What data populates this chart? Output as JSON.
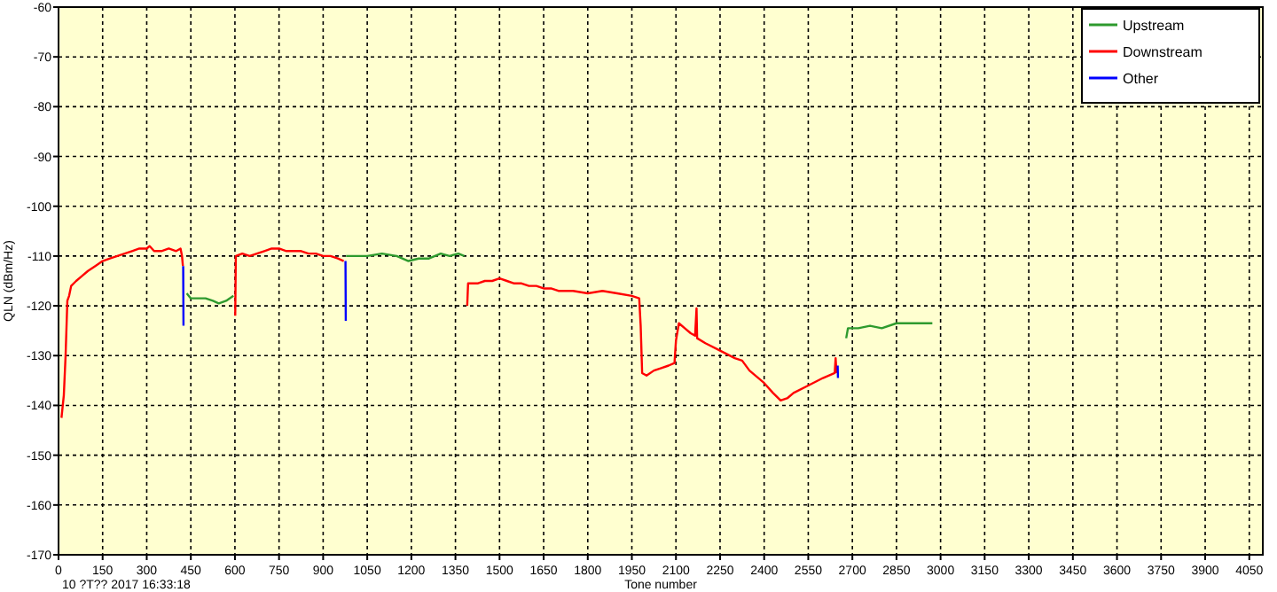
{
  "chart_data": {
    "type": "line",
    "xlabel": "Tone number",
    "ylabel": "QLN (dBm/Hz)",
    "annotations": [
      "10 ?T?? 2017 16:33:18"
    ],
    "xlim": [
      0,
      4096
    ],
    "xticks": [
      0,
      150,
      300,
      450,
      600,
      750,
      900,
      1050,
      1200,
      1350,
      1500,
      1650,
      1800,
      1950,
      2100,
      2250,
      2400,
      2550,
      2700,
      2850,
      3000,
      3150,
      3300,
      3450,
      3600,
      3750,
      3900,
      4050
    ],
    "ylim": [
      -170,
      -60
    ],
    "yticks": [
      -60,
      -70,
      -80,
      -90,
      -100,
      -110,
      -120,
      -130,
      -140,
      -150,
      -160,
      -170
    ],
    "grid": true,
    "legend": "top right",
    "line_style": "solid",
    "marker": "none",
    "series": [
      {
        "name": "Upstream",
        "color": "#2e9a2e",
        "x": [
          436,
          450,
          475,
          500,
          525,
          545,
          570,
          595,
          790,
          978,
          1000,
          1050,
          1100,
          1150,
          1190,
          1225,
          1260,
          1300,
          1330,
          1360,
          1380,
          2000,
          2679,
          2685,
          2720,
          2760,
          2800,
          2850,
          2900,
          2930,
          2972
        ],
        "values": [
          -117.5,
          -118.5,
          -118.5,
          -118.5,
          -119,
          -119.5,
          -119,
          -118,
          null,
          -110,
          -110,
          -110,
          -109.5,
          -110,
          -111,
          -110.5,
          -110.5,
          -109.5,
          -110,
          -109.5,
          -110,
          null,
          -126.5,
          -124.5,
          -124.5,
          -124,
          -124.5,
          -123.5,
          -123.5,
          -123.5,
          -123.5
        ]
      },
      {
        "name": "Downstream",
        "color": "#ff0000",
        "x": [
          10,
          18,
          24,
          30,
          36,
          43,
          60,
          80,
          100,
          125,
          150,
          175,
          200,
          225,
          250,
          275,
          300,
          310,
          325,
          350,
          375,
          400,
          415,
          420,
          423,
          500,
          601,
          603,
          625,
          650,
          675,
          700,
          725,
          750,
          775,
          800,
          825,
          850,
          875,
          900,
          925,
          950,
          970,
          1200,
          1390,
          1393,
          1425,
          1450,
          1475,
          1500,
          1525,
          1550,
          1575,
          1600,
          1625,
          1650,
          1675,
          1700,
          1750,
          1800,
          1850,
          1900,
          1950,
          1975,
          1980,
          1985,
          2000,
          2025,
          2050,
          2075,
          2095,
          2100,
          2110,
          2130,
          2150,
          2165,
          2170,
          2172,
          2200,
          2250,
          2300,
          2325,
          2350,
          2400,
          2430,
          2456,
          2480,
          2500,
          2550,
          2600,
          2640,
          2643,
          2646
        ],
        "values": [
          -142.5,
          -138,
          -130,
          -119,
          -118,
          -116,
          -115,
          -114,
          -113,
          -112,
          -111,
          -110.5,
          -110,
          -109.5,
          -109,
          -108.5,
          -108.5,
          -108,
          -109,
          -109,
          -108.5,
          -109,
          -108.5,
          -110,
          -112,
          null,
          -122,
          -110,
          -109.5,
          -110,
          -109.5,
          -109,
          -108.5,
          -108.5,
          -109,
          -109,
          -109,
          -109.5,
          -109.5,
          -110,
          -110,
          -110.5,
          -111,
          null,
          -120,
          -115.5,
          -115.5,
          -115,
          -115,
          -114.5,
          -115,
          -115.5,
          -115.5,
          -116,
          -116,
          -116.5,
          -116.5,
          -117,
          -117,
          -117.5,
          -117,
          -117.5,
          -118,
          -118.5,
          -124,
          -133.5,
          -134,
          -133,
          -132.5,
          -132,
          -131.5,
          -127,
          -123.5,
          -124.5,
          -125.5,
          -126,
          -120.5,
          -126.5,
          -127.5,
          -129,
          -130.5,
          -131,
          -133,
          -135.5,
          -137.5,
          -139,
          -138.5,
          -137.5,
          -136,
          -134.5,
          -133.5,
          -130.5,
          -133.5
        ]
      },
      {
        "name": "Other",
        "color": "#0000ff",
        "x": [
          424,
          425,
          700,
          976,
          977,
          2000,
          2650,
          2651
        ],
        "values": [
          -112,
          -124,
          null,
          -111,
          -123,
          null,
          -132,
          -134.5
        ]
      }
    ]
  }
}
